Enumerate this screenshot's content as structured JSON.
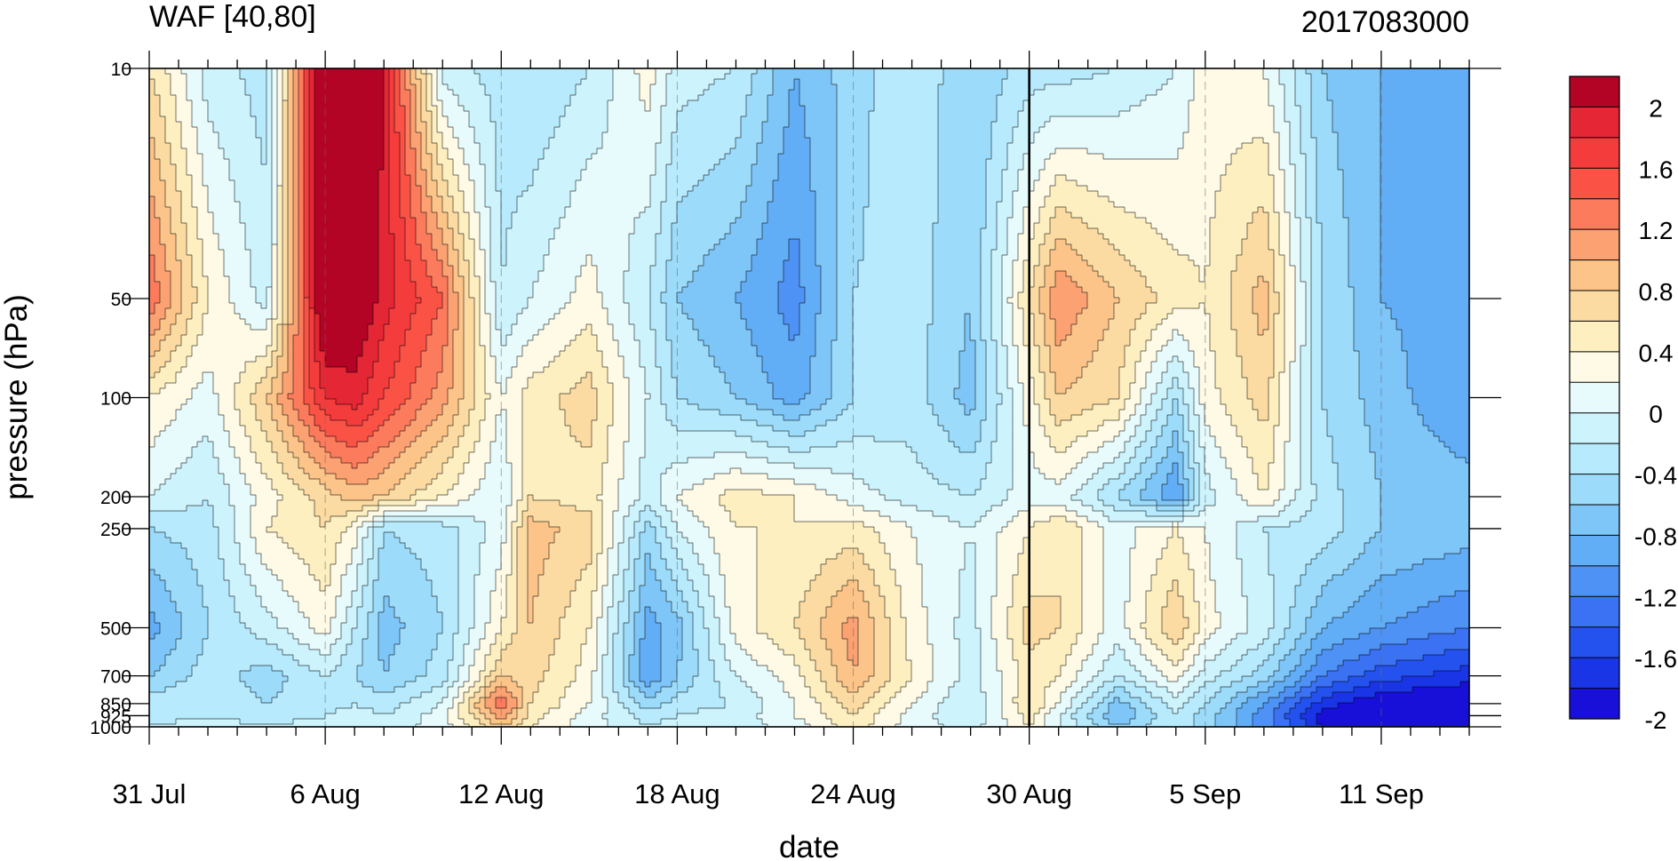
{
  "chart_data": {
    "type": "heatmap",
    "title": "WAF [40,80]",
    "run_label": "2017083000",
    "xlabel": "date",
    "ylabel": "pressure (hPa)",
    "x_range_days": [
      0,
      45
    ],
    "x_ticks": [
      {
        "day": 0,
        "label": "31 Jul"
      },
      {
        "day": 6,
        "label": "6 Aug"
      },
      {
        "day": 12,
        "label": "12 Aug"
      },
      {
        "day": 18,
        "label": "18 Aug"
      },
      {
        "day": 24,
        "label": "24 Aug"
      },
      {
        "day": 30,
        "label": "30 Aug"
      },
      {
        "day": 36,
        "label": "5 Sep"
      },
      {
        "day": 42,
        "label": "11 Sep"
      }
    ],
    "y_scale": "log",
    "y_range_hpa": [
      1000,
      10
    ],
    "y_ticks": [
      10,
      50,
      100,
      200,
      250,
      500,
      700,
      850,
      925,
      1000
    ],
    "y_tick_labels": [
      "10",
      "50",
      "100",
      "200",
      "250",
      "500",
      "700",
      "850",
      "925",
      "1000"
    ],
    "marked_day": 30,
    "grid": "dashed vertical lines at date ticks",
    "colorbar": {
      "placement": "right",
      "levels": [
        -2.2,
        -2.0,
        -1.8,
        -1.6,
        -1.4,
        -1.2,
        -1.0,
        -0.8,
        -0.6,
        -0.4,
        -0.2,
        0.0,
        0.2,
        0.4,
        0.6,
        0.8,
        1.0,
        1.2,
        1.4,
        1.6,
        1.8,
        2.0,
        2.2
      ],
      "colors": [
        "#1810d8",
        "#1a35e6",
        "#2452ee",
        "#3a72f3",
        "#4f92f5",
        "#62aef6",
        "#7fc6f8",
        "#9cdcfa",
        "#b6eafc",
        "#cdf3fc",
        "#e8fbfc",
        "#fffae6",
        "#fdefc0",
        "#fbdba2",
        "#fcc489",
        "#fba172",
        "#fc7b5c",
        "#fb5246",
        "#f53c3c",
        "#e52634",
        "#b40426"
      ],
      "tick_labels": [
        "2",
        "1.6",
        "1.2",
        "0.8",
        "0.4",
        "0",
        "-0.4",
        "-0.8",
        "-1.2",
        "-1.6",
        "-2"
      ]
    },
    "pressure_levels": [
      10,
      50,
      100,
      200,
      250,
      500,
      700,
      850,
      925,
      1000
    ],
    "days": [
      0,
      2,
      4,
      6,
      7,
      8,
      10,
      12,
      13,
      15,
      17,
      18,
      20,
      22,
      24,
      26,
      28,
      30,
      31,
      33,
      35,
      36,
      38,
      40,
      42,
      45
    ],
    "values": [
      [
        0.4,
        -0.3,
        -0.5,
        2.3,
        2.3,
        1.8,
        -0.3,
        -0.5,
        -0.6,
        -0.4,
        0.1,
        -0.3,
        -0.4,
        -1.0,
        -0.7,
        -0.4,
        -0.8,
        -0.5,
        -0.5,
        -0.4,
        -0.2,
        0.1,
        0.0,
        -0.8,
        -1.0,
        -1.2
      ],
      [
        1.2,
        0.2,
        -0.3,
        2.2,
        2.1,
        1.7,
        1.2,
        -0.4,
        -0.2,
        0.1,
        -0.4,
        -0.8,
        -1.0,
        -1.3,
        -0.6,
        -0.5,
        -0.8,
        0.4,
        1.0,
        0.6,
        0.3,
        0.2,
        0.7,
        -0.6,
        -1.0,
        -1.1
      ],
      [
        0.2,
        -0.1,
        0.6,
        1.6,
        1.7,
        1.4,
        0.9,
        0.0,
        0.3,
        0.5,
        -0.2,
        -0.6,
        -0.8,
        -1.1,
        -0.6,
        -0.5,
        -0.9,
        0.1,
        0.6,
        0.4,
        -0.6,
        0.1,
        0.5,
        -0.6,
        -0.9,
        -1.2
      ],
      [
        -0.2,
        -0.4,
        0.1,
        0.5,
        0.7,
        0.6,
        0.2,
        -0.2,
        0.4,
        0.3,
        -0.3,
        0.0,
        0.3,
        0.2,
        -0.1,
        -0.3,
        -0.4,
        -0.1,
        -0.1,
        -0.6,
        -1.2,
        -0.3,
        0.2,
        -0.5,
        -0.8,
        -0.9
      ],
      [
        -0.6,
        -0.5,
        0.2,
        0.4,
        0.1,
        -0.6,
        -0.5,
        -0.1,
        0.7,
        0.5,
        -0.7,
        -0.2,
        0.2,
        0.2,
        0.3,
        0.0,
        -0.2,
        0.2,
        0.4,
        -0.1,
        0.2,
        0.0,
        -0.4,
        -0.5,
        -0.8,
        -0.9
      ],
      [
        -1.1,
        -0.6,
        -0.3,
        0.1,
        -0.4,
        -0.9,
        -0.6,
        0.2,
        0.6,
        0.2,
        -1.1,
        -0.9,
        0.1,
        0.4,
        0.9,
        0.1,
        -0.3,
        0.5,
        0.4,
        -0.1,
        0.6,
        0.1,
        -0.3,
        -1.0,
        -1.2,
        -1.4
      ],
      [
        -0.8,
        -0.5,
        -0.7,
        -0.4,
        -0.6,
        -0.8,
        -0.5,
        0.6,
        0.5,
        0.1,
        -1.2,
        -0.8,
        -0.2,
        0.1,
        0.8,
        0.2,
        -0.3,
        0.3,
        0.2,
        -0.4,
        0.1,
        -0.3,
        -0.7,
        -1.4,
        -1.7,
        -1.9
      ],
      [
        -0.5,
        -0.4,
        -0.6,
        -0.5,
        -0.4,
        -0.5,
        -0.2,
        1.2,
        0.4,
        0.0,
        -0.7,
        -0.5,
        -0.4,
        0.0,
        0.5,
        0.0,
        -0.4,
        0.4,
        0.0,
        -0.9,
        -0.3,
        -0.6,
        -1.2,
        -1.9,
        -2.2,
        -2.3
      ],
      [
        -0.5,
        -0.4,
        -0.5,
        -0.4,
        -0.3,
        -0.4,
        -0.1,
        0.9,
        0.3,
        -0.1,
        -0.5,
        -0.4,
        -0.3,
        0.0,
        0.4,
        -0.1,
        -0.4,
        0.3,
        -0.2,
        -1.0,
        -0.4,
        -0.7,
        -1.3,
        -2.1,
        -2.3,
        -2.4
      ],
      [
        -0.4,
        -0.3,
        -0.4,
        -0.3,
        -0.3,
        -0.3,
        -0.1,
        0.6,
        0.2,
        -0.1,
        -0.4,
        -0.3,
        -0.3,
        -0.1,
        0.3,
        -0.1,
        -0.3,
        0.2,
        -0.2,
        -0.8,
        -0.4,
        -0.7,
        -1.3,
        -2.0,
        -2.3,
        -2.4
      ]
    ]
  }
}
